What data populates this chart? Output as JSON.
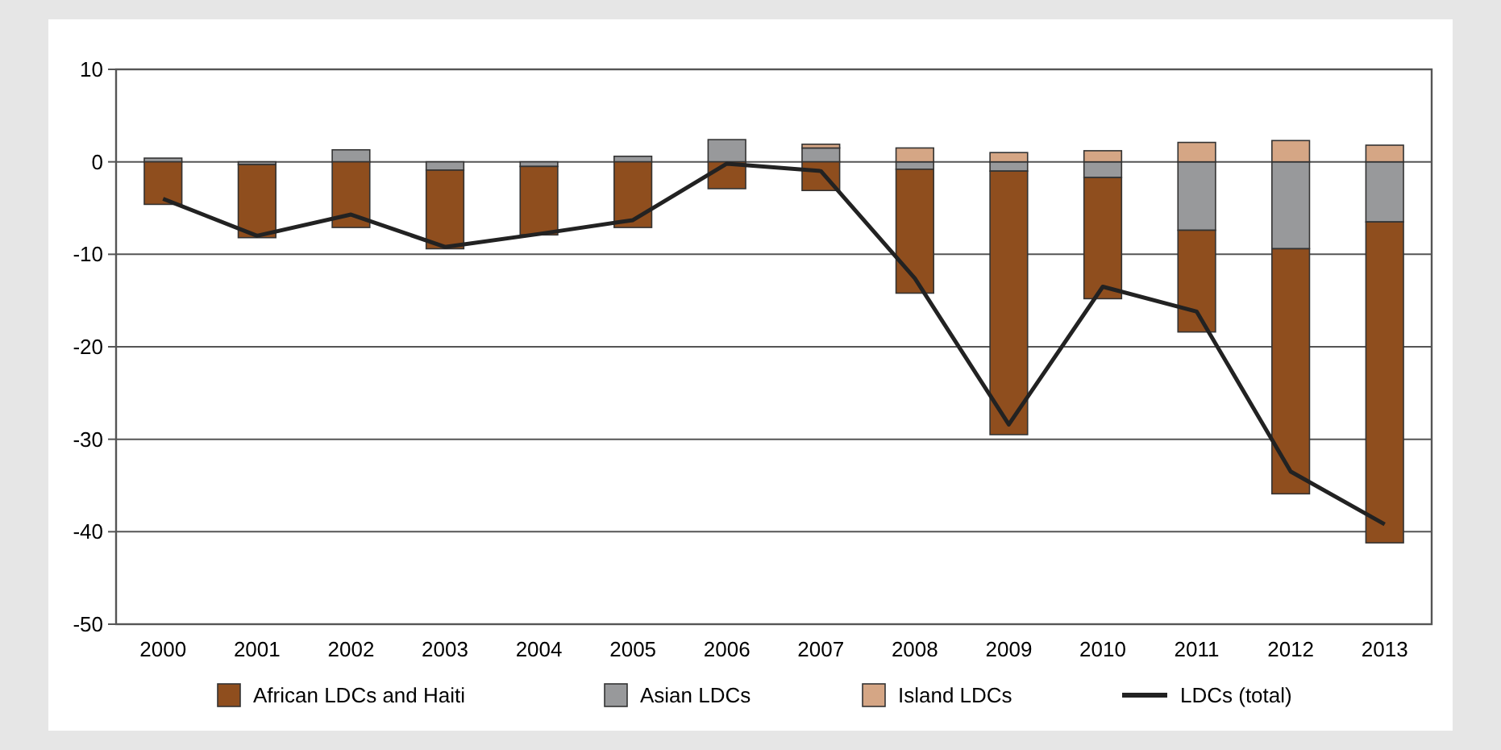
{
  "chart_data": {
    "type": "bar",
    "stacked": true,
    "categories": [
      "2000",
      "2001",
      "2002",
      "2003",
      "2004",
      "2005",
      "2006",
      "2007",
      "2008",
      "2009",
      "2010",
      "2011",
      "2012",
      "2013"
    ],
    "series": [
      {
        "name": "Asian LDCs",
        "color": "#98999b",
        "values": [
          0.4,
          -0.3,
          1.3,
          -0.9,
          -0.5,
          0.6,
          2.4,
          1.5,
          -0.8,
          -1.0,
          -1.7,
          -7.4,
          -9.4,
          -6.5
        ]
      },
      {
        "name": "Island LDCs",
        "color": "#d5a685",
        "values": [
          null,
          null,
          null,
          null,
          null,
          null,
          null,
          0.4,
          1.5,
          1.0,
          1.2,
          2.1,
          2.3,
          1.8
        ]
      },
      {
        "name": "African LDCs and Haiti",
        "color": "#8f4e1e",
        "values": [
          -4.6,
          -7.9,
          -7.1,
          -8.5,
          -7.4,
          -7.1,
          -2.9,
          -3.1,
          -13.4,
          -28.5,
          -13.1,
          -11.0,
          -26.5,
          -34.7
        ]
      },
      {
        "name": "LDCs (total)",
        "type": "line",
        "color": "#222222",
        "values": [
          -4.0,
          -8.0,
          -5.7,
          -9.2,
          -7.8,
          -6.3,
          -0.2,
          -1.0,
          -12.6,
          -28.4,
          -13.5,
          -16.2,
          -33.5,
          -39.2
        ]
      }
    ],
    "ylim": [
      -50,
      10
    ],
    "yticks": [
      -50,
      -40,
      -30,
      -20,
      -10,
      0,
      10
    ],
    "grid": "y",
    "legend": "bottom",
    "marker": "none",
    "line_style": "solid"
  }
}
